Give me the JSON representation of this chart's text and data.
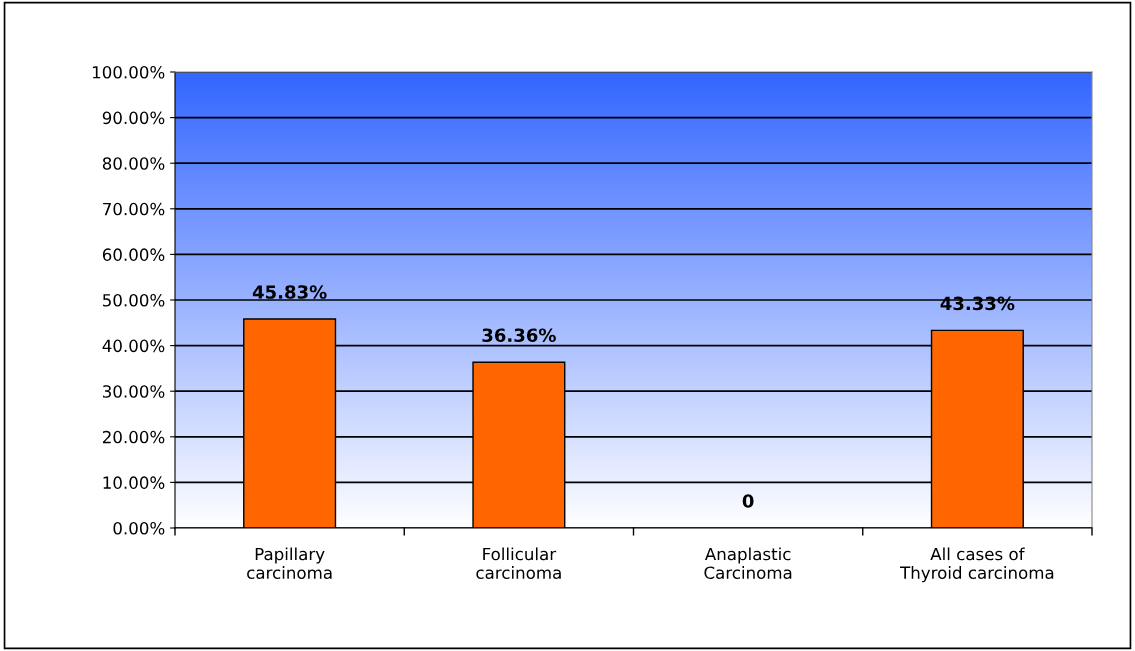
{
  "chart_data": {
    "type": "bar",
    "categories": [
      "Papillary\ncarcinoma",
      "Follicular\ncarcinoma",
      "Anaplastic\nCarcinoma",
      "All cases of\nThyroid carcinoma"
    ],
    "values": [
      45.83,
      36.36,
      0,
      43.33
    ],
    "color": "#ff6600",
    "value_labels": [
      "45.83%",
      "36.36%",
      "0",
      "43.33%"
    ],
    "ylim": [
      0,
      100
    ],
    "yticks": [
      {
        "value": 0,
        "label": "0.00%"
      },
      {
        "value": 10,
        "label": "10.00%"
      },
      {
        "value": 20,
        "label": "20.00%"
      },
      {
        "value": 30,
        "label": "30.00%"
      },
      {
        "value": 40,
        "label": "40.00%"
      },
      {
        "value": 50,
        "label": "50.00%"
      },
      {
        "value": 60,
        "label": "60.00%"
      },
      {
        "value": 70,
        "label": "70.00%"
      },
      {
        "value": 80,
        "label": "80.00%"
      },
      {
        "value": 90,
        "label": "90.00%"
      },
      {
        "value": 100,
        "label": "100.00%"
      }
    ],
    "grid": "y"
  }
}
